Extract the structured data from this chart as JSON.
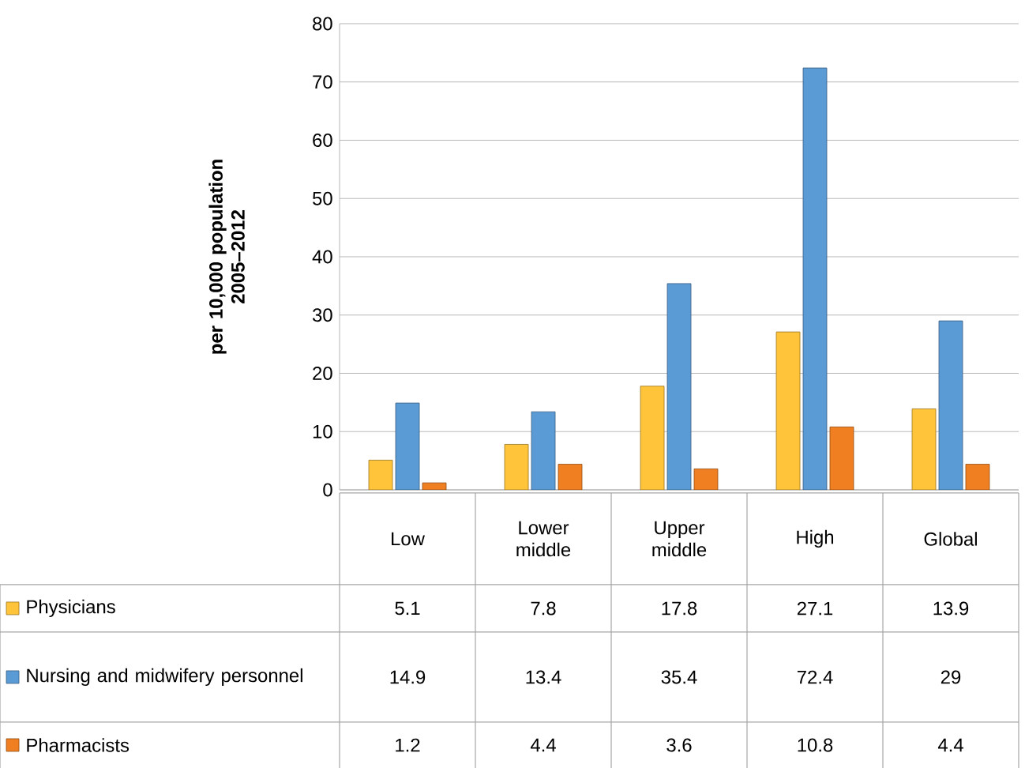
{
  "chart_data": {
    "type": "bar",
    "ylabel": "per 10,000 population 2005–2012",
    "categories": [
      "Low",
      "Lower middle",
      "Upper middle",
      "High",
      "Global"
    ],
    "series": [
      {
        "name": "Physicians",
        "color": "#ffc43a",
        "values": [
          5.1,
          7.8,
          17.8,
          27.1,
          13.9
        ]
      },
      {
        "name": "Nursing and midwifery personnel",
        "color": "#5b9bd5",
        "values": [
          14.9,
          13.4,
          35.4,
          72.4,
          29
        ]
      },
      {
        "name": "Pharmacists",
        "color": "#f07f22",
        "values": [
          1.2,
          4.4,
          3.6,
          10.8,
          4.4
        ]
      }
    ],
    "ylim": [
      0,
      80
    ],
    "yticks": [
      0,
      10,
      20,
      30,
      40,
      50,
      60,
      70,
      80
    ],
    "grid": "y",
    "legend": "bottom",
    "data_labels": true
  }
}
